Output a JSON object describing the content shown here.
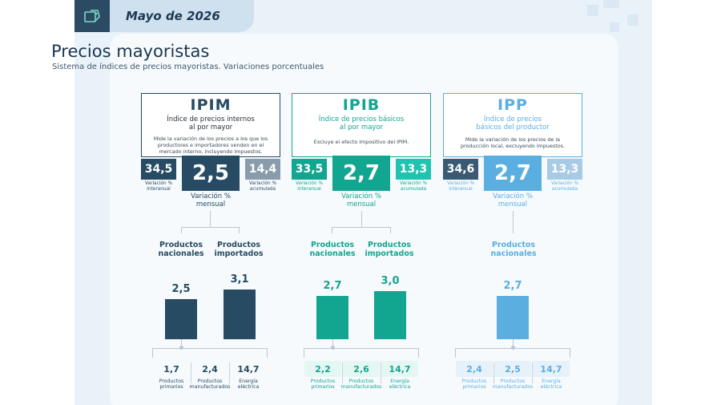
{
  "header": {
    "date": "Mayo de 2026",
    "logo_icon": "price-tag-icon"
  },
  "title": "Precios mayoristas",
  "subtitle": "Sistema de índices de precios mayoristas. Variaciones porcentuales",
  "colors": {
    "ipim": "#274b63",
    "ipib": "#12a58f",
    "ipp": "#5aaee0",
    "ipim_light": "#8a9cab",
    "ipib_light": "#20c3b0",
    "ipp_light": "#a8cbe5"
  },
  "indices": [
    {
      "abbr": "IPIM",
      "name_l1": "Índice de precios internos",
      "name_l2": "al por mayor",
      "desc_l1": "Mide la variación de los precios a los que los",
      "desc_l2": "productores e importadores venden en el",
      "desc_l3": "mercado interno, incluyendo impuestos.",
      "interanual": "34,5",
      "mensual": "2,5",
      "acumulada": "14,4",
      "lab_interanual_1": "Variación %",
      "lab_interanual_2": "interanual",
      "lab_acumulada_1": "Variación %",
      "lab_acumulada_2": "acumulada",
      "lab_mensual_1": "Variación %",
      "lab_mensual_2": "mensual",
      "cat1_l1": "Productos",
      "cat1_l2": "nacionales",
      "cat2_l1": "Productos",
      "cat2_l2": "importados",
      "bar1": "2,5",
      "bar2": "3,1",
      "sub": [
        {
          "value": "1,7",
          "l1": "Productos",
          "l2": "primarios"
        },
        {
          "value": "2,4",
          "l1": "Productos",
          "l2": "manufacturados"
        },
        {
          "value": "14,7",
          "l1": "Energía",
          "l2": "eléctrica"
        }
      ]
    },
    {
      "abbr": "IPIB",
      "name_l1": "Índice de precios básicos",
      "name_l2": "al por mayor",
      "desc_l1": "Excluye el efecto impositivo del IPIM.",
      "interanual": "33,5",
      "mensual": "2,7",
      "acumulada": "13,3",
      "lab_interanual_1": "Variación %",
      "lab_interanual_2": "interanual",
      "lab_acumulada_1": "Variación %",
      "lab_acumulada_2": "acumulada",
      "lab_mensual_1": "Variación %",
      "lab_mensual_2": "mensual",
      "cat1_l1": "Productos",
      "cat1_l2": "nacionales",
      "cat2_l1": "Productos",
      "cat2_l2": "importados",
      "bar1": "2,7",
      "bar2": "3,0",
      "sub": [
        {
          "value": "2,2",
          "l1": "Productos",
          "l2": "primarios"
        },
        {
          "value": "2,6",
          "l1": "Productos",
          "l2": "manufacturados"
        },
        {
          "value": "14,7",
          "l1": "Energía",
          "l2": "eléctrica"
        }
      ]
    },
    {
      "abbr": "IPP",
      "name_l1": "Índice de precios",
      "name_l2": "básicos del productor",
      "desc_l1": "Mide la variación de los precios de la",
      "desc_l2": "producción local, excluyendo impuestos.",
      "interanual": "34,6",
      "mensual": "2,7",
      "acumulada": "13,3",
      "lab_interanual_1": "Variación %",
      "lab_interanual_2": "interanual",
      "lab_acumulada_1": "Variación %",
      "lab_acumulada_2": "acumulada",
      "lab_mensual_1": "Variación %",
      "lab_mensual_2": "mensual",
      "cat1_l1": "Productos",
      "cat1_l2": "nacionales",
      "bar1": "2,7",
      "sub": [
        {
          "value": "2,4",
          "l1": "Productos",
          "l2": "primarios"
        },
        {
          "value": "2,5",
          "l1": "Productos",
          "l2": "manufacturados"
        },
        {
          "value": "14,7",
          "l1": "Energía",
          "l2": "eléctrica"
        }
      ]
    }
  ],
  "chart_data": {
    "type": "bar",
    "title": "Precios mayoristas",
    "categories": [
      "IPIM Productos nacionales",
      "IPIM Productos importados",
      "IPIB Productos nacionales",
      "IPIB Productos importados",
      "IPP Productos nacionales"
    ],
    "values": [
      2.5,
      3.1,
      2.7,
      3.0,
      2.7
    ],
    "ylabel": "Variación % mensual"
  }
}
